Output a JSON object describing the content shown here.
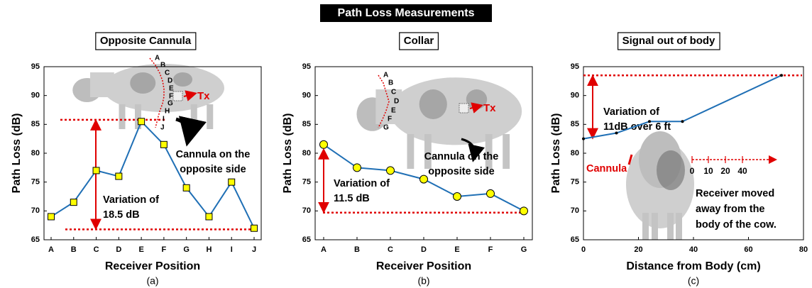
{
  "title": "Path Loss Measurements",
  "chart_data": [
    {
      "type": "line",
      "title": "Opposite Cannula",
      "caption": "(a)",
      "xlabel": "Receiver Position",
      "ylabel": "Path Loss (dB)",
      "categories": [
        "A",
        "B",
        "C",
        "D",
        "E",
        "F",
        "G",
        "H",
        "I",
        "J"
      ],
      "values": [
        69,
        71.5,
        77,
        76,
        85.5,
        81.5,
        74,
        69,
        75,
        67
      ],
      "color": "#1f6fb5",
      "marker": "square",
      "marker_color": "#ffff00",
      "ylim": [
        65,
        95
      ],
      "yticks": [
        65,
        70,
        75,
        80,
        85,
        90,
        95
      ],
      "reference_lines": [
        85.8,
        66.8
      ],
      "reference_color": "#e00000",
      "variation_label": [
        "Variation of",
        "18.5 dB"
      ],
      "cannula_label": [
        "Cannula on the",
        "opposite side"
      ],
      "tx_label": "Tx",
      "position_letters": [
        "A",
        "B",
        "C",
        "D",
        "E",
        "F",
        "G",
        "H",
        "I",
        "J"
      ]
    },
    {
      "type": "line",
      "title": "Collar",
      "caption": "(b)",
      "xlabel": "Receiver Position",
      "ylabel": "Path Loss (dB)",
      "categories": [
        "A",
        "B",
        "C",
        "D",
        "E",
        "F",
        "G"
      ],
      "values": [
        81.5,
        77.5,
        77,
        75.5,
        72.5,
        73,
        70
      ],
      "color": "#1f6fb5",
      "marker": "circle",
      "marker_color": "#ffff00",
      "ylim": [
        65,
        95
      ],
      "yticks": [
        65,
        70,
        75,
        80,
        85,
        90,
        95
      ],
      "reference_lines": [
        69.7
      ],
      "reference_color": "#e00000",
      "variation_label": [
        "Variation of",
        "11.5 dB"
      ],
      "cannula_label": [
        "Cannula on the",
        "opposite side"
      ],
      "tx_label": "Tx",
      "position_letters": [
        "A",
        "B",
        "C",
        "D",
        "E",
        "F",
        "G"
      ]
    },
    {
      "type": "line",
      "title": "Signal out of body",
      "caption": "(c)",
      "xlabel": "Distance from Body (cm)",
      "ylabel": "Path Loss (dB)",
      "x": [
        0,
        12,
        24,
        36,
        72
      ],
      "values": [
        82.5,
        83.5,
        85.5,
        85.5,
        93.5
      ],
      "color": "#1f6fb5",
      "marker": "dot",
      "marker_color": "#000000",
      "xlim": [
        0,
        80
      ],
      "xticks": [
        0,
        20,
        40,
        60,
        80
      ],
      "ylim": [
        65,
        95
      ],
      "yticks": [
        65,
        70,
        75,
        80,
        85,
        90,
        95
      ],
      "reference_lines": [
        93.5
      ],
      "reference_color": "#e00000",
      "variation_label": [
        "Variation of",
        "11dB over 6 ft"
      ],
      "cannula_label": [
        "Cannula"
      ],
      "distance_labels": [
        "0",
        "10",
        "20",
        "40"
      ],
      "receiver_label": [
        "Receiver moved",
        "away from the",
        "body of the cow."
      ]
    }
  ]
}
